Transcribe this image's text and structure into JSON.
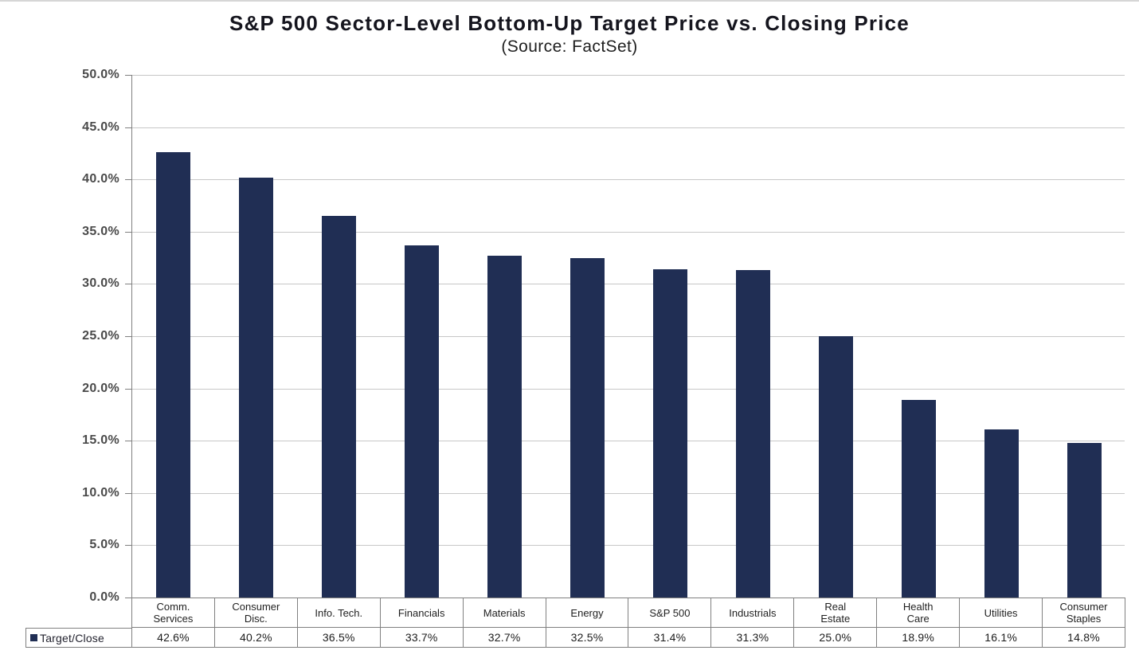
{
  "page": {
    "background": "#ffffff",
    "top_border_color": "#d6d6d6"
  },
  "chart_data": {
    "type": "bar",
    "title": "S&P 500 Sector-Level Bottom-Up Target Price vs. Closing Price",
    "subtitle": "(Source: FactSet)",
    "categories": [
      "Comm.\nServices",
      "Consumer\nDisc.",
      "Info. Tech.",
      "Financials",
      "Materials",
      "Energy",
      "S&P 500",
      "Industrials",
      "Real\nEstate",
      "Health\nCare",
      "Utilities",
      "Consumer\nStaples"
    ],
    "series": [
      {
        "name": "Target/Close",
        "values": [
          42.6,
          40.2,
          36.5,
          33.7,
          32.7,
          32.5,
          31.4,
          31.3,
          25.0,
          18.9,
          16.1,
          14.8
        ],
        "labels": [
          "42.6%",
          "40.2%",
          "36.5%",
          "33.7%",
          "32.7%",
          "32.5%",
          "31.4%",
          "31.3%",
          "25.0%",
          "18.9%",
          "16.1%",
          "14.8%"
        ]
      }
    ],
    "ylim": [
      0,
      50
    ],
    "y_tick_step": 5,
    "y_ticks": [
      "50.0%",
      "45.0%",
      "40.0%",
      "35.0%",
      "30.0%",
      "25.0%",
      "20.0%",
      "15.0%",
      "10.0%",
      "5.0%",
      "0.0%"
    ],
    "grid": true,
    "legend_position": "bottom-left",
    "colors": {
      "bar": "#202e54",
      "gridline": "#c7c7c7",
      "axis": "#808080",
      "table_border": "#808080",
      "title_text": "#15151e",
      "axis_label_text": "#4a4a4a",
      "cell_text": "#1f1f1f"
    }
  }
}
